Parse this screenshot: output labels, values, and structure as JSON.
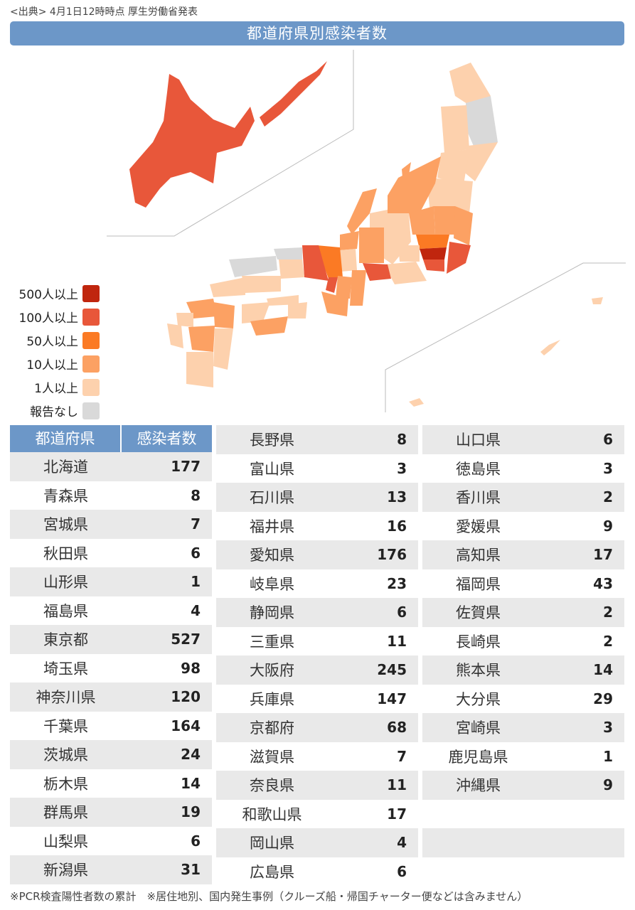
{
  "source_note": "<出典> 4月1日12時時点 厚生労働省発表",
  "title": "都道府県別感染者数",
  "legend": [
    {
      "label": "500人以上",
      "color": "#c0260e"
    },
    {
      "label": "100人以上",
      "color": "#e8573a"
    },
    {
      "label": "50人以上",
      "color": "#fb7a24"
    },
    {
      "label": "10人以上",
      "color": "#fca163"
    },
    {
      "label": "1人以上",
      "color": "#fdd1ad"
    },
    {
      "label": "報告なし",
      "color": "#d9d9d9"
    }
  ],
  "table_headers": {
    "prefecture": "都道府県",
    "count": "感染者数"
  },
  "footnote": "※PCR検査陽性者数の累計　※居住地別、国内発生事例（クルーズ船・帰国チャーター便などは含みません）",
  "chart_data": {
    "type": "table",
    "title": "都道府県別感染者数",
    "columns": [
      "都道府県",
      "感染者数"
    ],
    "rows": [
      {
        "pref": "北海道",
        "count": 177
      },
      {
        "pref": "青森県",
        "count": 8
      },
      {
        "pref": "宮城県",
        "count": 7
      },
      {
        "pref": "秋田県",
        "count": 6
      },
      {
        "pref": "山形県",
        "count": 1
      },
      {
        "pref": "福島県",
        "count": 4
      },
      {
        "pref": "東京都",
        "count": 527
      },
      {
        "pref": "埼玉県",
        "count": 98
      },
      {
        "pref": "神奈川県",
        "count": 120
      },
      {
        "pref": "千葉県",
        "count": 164
      },
      {
        "pref": "茨城県",
        "count": 24
      },
      {
        "pref": "栃木県",
        "count": 14
      },
      {
        "pref": "群馬県",
        "count": 19
      },
      {
        "pref": "山梨県",
        "count": 6
      },
      {
        "pref": "新潟県",
        "count": 31
      },
      {
        "pref": "長野県",
        "count": 8
      },
      {
        "pref": "富山県",
        "count": 3
      },
      {
        "pref": "石川県",
        "count": 13
      },
      {
        "pref": "福井県",
        "count": 16
      },
      {
        "pref": "愛知県",
        "count": 176
      },
      {
        "pref": "岐阜県",
        "count": 23
      },
      {
        "pref": "静岡県",
        "count": 6
      },
      {
        "pref": "三重県",
        "count": 11
      },
      {
        "pref": "大阪府",
        "count": 245
      },
      {
        "pref": "兵庫県",
        "count": 147
      },
      {
        "pref": "京都府",
        "count": 68
      },
      {
        "pref": "滋賀県",
        "count": 7
      },
      {
        "pref": "奈良県",
        "count": 11
      },
      {
        "pref": "和歌山県",
        "count": 17
      },
      {
        "pref": "岡山県",
        "count": 4
      },
      {
        "pref": "広島県",
        "count": 6
      },
      {
        "pref": "山口県",
        "count": 6
      },
      {
        "pref": "徳島県",
        "count": 3
      },
      {
        "pref": "香川県",
        "count": 2
      },
      {
        "pref": "愛媛県",
        "count": 9
      },
      {
        "pref": "高知県",
        "count": 17
      },
      {
        "pref": "福岡県",
        "count": 43
      },
      {
        "pref": "佐賀県",
        "count": 2
      },
      {
        "pref": "長崎県",
        "count": 2
      },
      {
        "pref": "熊本県",
        "count": 14
      },
      {
        "pref": "大分県",
        "count": 29
      },
      {
        "pref": "宮崎県",
        "count": 3
      },
      {
        "pref": "鹿児島県",
        "count": 1
      },
      {
        "pref": "沖縄県",
        "count": 9
      }
    ]
  }
}
